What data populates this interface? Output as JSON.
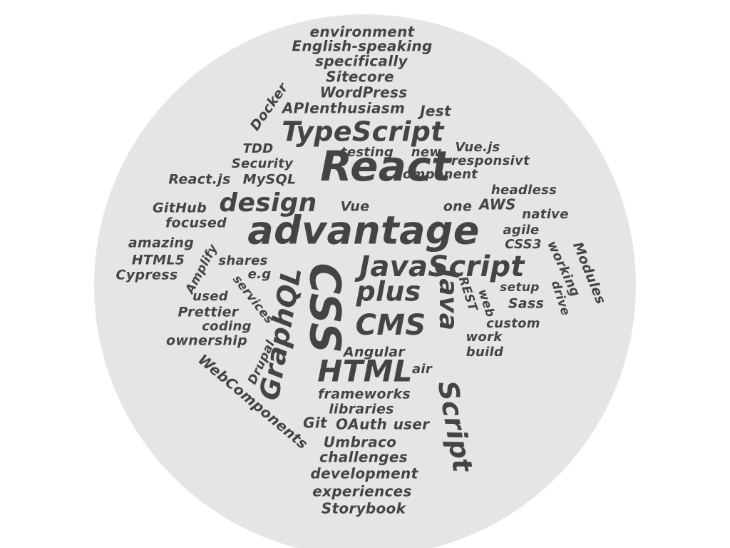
{
  "colors": {
    "background": "#ffffff",
    "circle": "#e5e5e5",
    "ink": "#444444"
  },
  "words": [
    {
      "text": "environment",
      "size": 20
    },
    {
      "text": "English-speaking",
      "size": 20
    },
    {
      "text": "specifically",
      "size": 20
    },
    {
      "text": "Sitecore",
      "size": 20
    },
    {
      "text": "WordPress",
      "size": 20
    },
    {
      "text": "Docker",
      "size": 19
    },
    {
      "text": "APIenthusiasm",
      "size": 20
    },
    {
      "text": "Jest",
      "size": 20
    },
    {
      "text": "TypeScript",
      "size": 38
    },
    {
      "text": "TDD",
      "size": 18
    },
    {
      "text": "testing",
      "size": 18
    },
    {
      "text": "new",
      "size": 18
    },
    {
      "text": "Vue.js",
      "size": 18
    },
    {
      "text": "responsivt",
      "size": 18
    },
    {
      "text": "Security",
      "size": 18
    },
    {
      "text": "React",
      "size": 58
    },
    {
      "text": "component",
      "size": 18
    },
    {
      "text": "React.js",
      "size": 19
    },
    {
      "text": "MySQL",
      "size": 19
    },
    {
      "text": "headless",
      "size": 18
    },
    {
      "text": "GitHub",
      "size": 19
    },
    {
      "text": "design",
      "size": 36
    },
    {
      "text": "Vue",
      "size": 19
    },
    {
      "text": "one",
      "size": 19
    },
    {
      "text": "AWS",
      "size": 20
    },
    {
      "text": "native",
      "size": 18
    },
    {
      "text": "focused",
      "size": 19
    },
    {
      "text": "advantage",
      "size": 54
    },
    {
      "text": "agile",
      "size": 18
    },
    {
      "text": "Modules",
      "size": 19
    },
    {
      "text": "amazing",
      "size": 19
    },
    {
      "text": "CSS3",
      "size": 18
    },
    {
      "text": "working",
      "size": 18
    },
    {
      "text": "HTML5",
      "size": 19
    },
    {
      "text": "Amplify",
      "size": 17
    },
    {
      "text": "shares",
      "size": 18
    },
    {
      "text": "CSS",
      "size": 60
    },
    {
      "text": "JavaScript",
      "size": 40
    },
    {
      "text": "Cypress",
      "size": 19
    },
    {
      "text": "e.g",
      "size": 18
    },
    {
      "text": "services",
      "size": 17
    },
    {
      "text": "GraphQL",
      "size": 38
    },
    {
      "text": "plus",
      "size": 38
    },
    {
      "text": "Java",
      "size": 36
    },
    {
      "text": "REST",
      "size": 17
    },
    {
      "text": "web",
      "size": 17
    },
    {
      "text": "setup",
      "size": 17
    },
    {
      "text": "drive",
      "size": 17
    },
    {
      "text": "Sass",
      "size": 19
    },
    {
      "text": "used",
      "size": 18
    },
    {
      "text": "Prettier",
      "size": 19
    },
    {
      "text": "CMS",
      "size": 40
    },
    {
      "text": "custom",
      "size": 18
    },
    {
      "text": "coding",
      "size": 18
    },
    {
      "text": "work",
      "size": 18
    },
    {
      "text": "ownership",
      "size": 19
    },
    {
      "text": "Drupal",
      "size": 17
    },
    {
      "text": "Angular",
      "size": 19
    },
    {
      "text": "build",
      "size": 18
    },
    {
      "text": "WebComponents",
      "size": 20
    },
    {
      "text": "HTML",
      "size": 42
    },
    {
      "text": "air",
      "size": 18
    },
    {
      "text": "Script",
      "size": 38
    },
    {
      "text": "frameworks",
      "size": 19
    },
    {
      "text": "libraries",
      "size": 19
    },
    {
      "text": "Git",
      "size": 20
    },
    {
      "text": "OAuth",
      "size": 20
    },
    {
      "text": "user",
      "size": 20
    },
    {
      "text": "Umbraco",
      "size": 20
    },
    {
      "text": "challenges",
      "size": 20
    },
    {
      "text": "development",
      "size": 20
    },
    {
      "text": "experiences",
      "size": 20
    },
    {
      "text": "Storybook",
      "size": 20
    }
  ]
}
